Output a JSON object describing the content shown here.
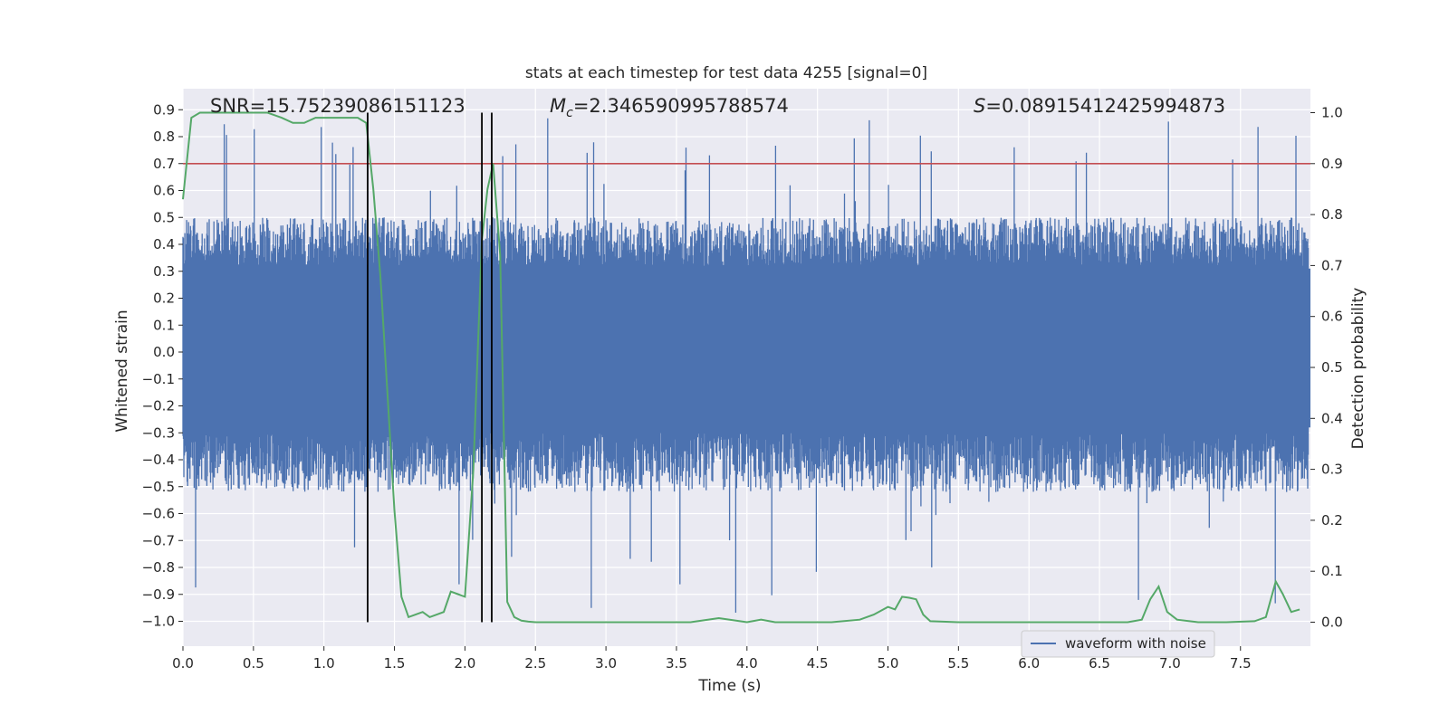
{
  "chart_data": {
    "type": "line",
    "title": "stats at each timestep for test data 4255 [signal=0]",
    "xlabel": "Time (s)",
    "ylabel_left": "Whitened strain",
    "ylabel_right": "Detection probability",
    "xlim": [
      0.0,
      8.0
    ],
    "ylim_left": [
      -1.09,
      0.97
    ],
    "ylim_right": [
      -0.05,
      1.05
    ],
    "x_ticks": [
      "0.0",
      "0.5",
      "1.0",
      "1.5",
      "2.0",
      "2.5",
      "3.0",
      "3.5",
      "4.0",
      "4.5",
      "5.0",
      "5.5",
      "6.0",
      "6.5",
      "7.0",
      "7.5"
    ],
    "y_left_ticks": [
      "0.9",
      "0.8",
      "0.7",
      "0.6",
      "0.5",
      "0.4",
      "0.3",
      "0.2",
      "0.1",
      "0.0",
      "-0.1",
      "-0.2",
      "-0.3",
      "-0.4",
      "-0.5",
      "-0.6",
      "-0.7",
      "-0.8",
      "-0.9",
      "-1.0"
    ],
    "y_right_ticks": [
      "1.0",
      "0.9",
      "0.8",
      "0.7",
      "0.6",
      "0.5",
      "0.4",
      "0.3",
      "0.2",
      "0.1",
      "0.0"
    ],
    "grid": true,
    "legend_position": "lower-right",
    "annotations": {
      "snr": "SNR=15.75239086151123",
      "mc_symbol": "M",
      "mc_sub": "c",
      "mc_value": "=2.346590995788574",
      "s_symbol": "S",
      "s_value": "=0.08915412425994873"
    },
    "series": [
      {
        "name": "waveform with noise",
        "axis": "left",
        "color": "#4c72b0",
        "style": "dense-noise",
        "approx_range": [
          -0.98,
          0.87
        ]
      },
      {
        "axis": "right",
        "color": "#55a868",
        "x": [
          0.0,
          0.06,
          0.12,
          0.2,
          0.3,
          0.4,
          0.5,
          0.6,
          0.7,
          0.78,
          0.86,
          0.94,
          1.0,
          1.06,
          1.12,
          1.18,
          1.24,
          1.3,
          1.35,
          1.4,
          1.45,
          1.5,
          1.55,
          1.6,
          1.65,
          1.7,
          1.75,
          1.8,
          1.85,
          1.9,
          1.95,
          2.0,
          2.06,
          2.12,
          2.16,
          2.2,
          2.25,
          2.3,
          2.35,
          2.4,
          2.45,
          2.5,
          2.6,
          2.8,
          3.0,
          3.2,
          3.4,
          3.6,
          3.8,
          4.0,
          4.1,
          4.2,
          4.4,
          4.6,
          4.8,
          4.9,
          5.0,
          5.05,
          5.1,
          5.15,
          5.2,
          5.25,
          5.3,
          5.5,
          5.8,
          6.0,
          6.4,
          6.7,
          6.8,
          6.86,
          6.92,
          6.98,
          7.05,
          7.2,
          7.4,
          7.6,
          7.68,
          7.75,
          7.8,
          7.86,
          7.92
        ],
        "y": [
          0.83,
          0.99,
          1.0,
          1.0,
          1.0,
          1.0,
          1.0,
          1.0,
          0.99,
          0.98,
          0.98,
          0.99,
          0.99,
          0.99,
          0.99,
          0.99,
          0.99,
          0.98,
          0.85,
          0.68,
          0.45,
          0.22,
          0.05,
          0.01,
          0.015,
          0.02,
          0.01,
          0.015,
          0.02,
          0.06,
          0.055,
          0.05,
          0.3,
          0.75,
          0.85,
          0.9,
          0.72,
          0.04,
          0.01,
          0.003,
          0.001,
          0.0,
          0.0,
          0.0,
          0.0,
          0.0,
          0.0,
          0.0,
          0.008,
          0.0,
          0.005,
          0.0,
          0.0,
          0.0,
          0.005,
          0.015,
          0.03,
          0.025,
          0.05,
          0.048,
          0.045,
          0.015,
          0.002,
          0.0,
          0.0,
          0.0,
          0.0,
          0.0,
          0.005,
          0.045,
          0.07,
          0.02,
          0.005,
          0.0,
          0.0,
          0.002,
          0.01,
          0.08,
          0.055,
          0.02,
          0.025
        ]
      }
    ],
    "hlines": [
      {
        "axis": "right",
        "value": 0.9,
        "color": "#c44e52"
      }
    ],
    "vlines": [
      {
        "x": 1.31,
        "color": "#000000"
      },
      {
        "x": 2.12,
        "color": "#000000"
      },
      {
        "x": 2.19,
        "color": "#000000"
      }
    ]
  }
}
